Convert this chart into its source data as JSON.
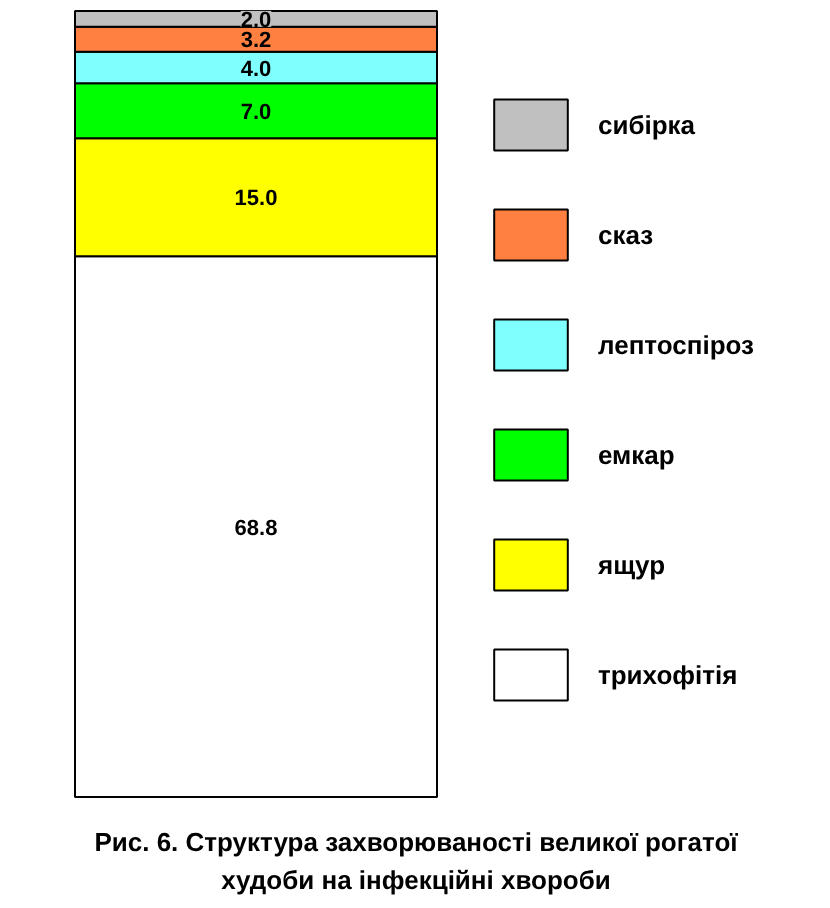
{
  "chart_data": {
    "type": "bar",
    "stacked": true,
    "categories": [
      null
    ],
    "data_labels": true,
    "legend": "right",
    "grid": false,
    "series": [
      {
        "name": "трихофітія",
        "color": "#ffffff",
        "values": [
          68.8
        ],
        "value_labels": [
          "68.8"
        ]
      },
      {
        "name": "ящур",
        "color": "#ffff00",
        "values": [
          15.0
        ],
        "value_labels": [
          "15.0"
        ]
      },
      {
        "name": "емкар",
        "color": "#00ff00",
        "values": [
          7.0
        ],
        "value_labels": [
          "7.0"
        ]
      },
      {
        "name": "лептоспіроз",
        "color": "#80ffff",
        "values": [
          4.0
        ],
        "value_labels": [
          "4.0"
        ]
      },
      {
        "name": "сказ",
        "color": "#ff8040",
        "values": [
          3.2
        ],
        "value_labels": [
          "3.2"
        ]
      },
      {
        "name": "сибірка",
        "color": "#c0c0c0",
        "values": [
          2.0
        ],
        "value_labels": [
          "2.0"
        ]
      }
    ],
    "annotations": [
      "Рис. 6. Структура захворюваності великої рогатої\nхудоби на інфекційні хвороби"
    ]
  }
}
